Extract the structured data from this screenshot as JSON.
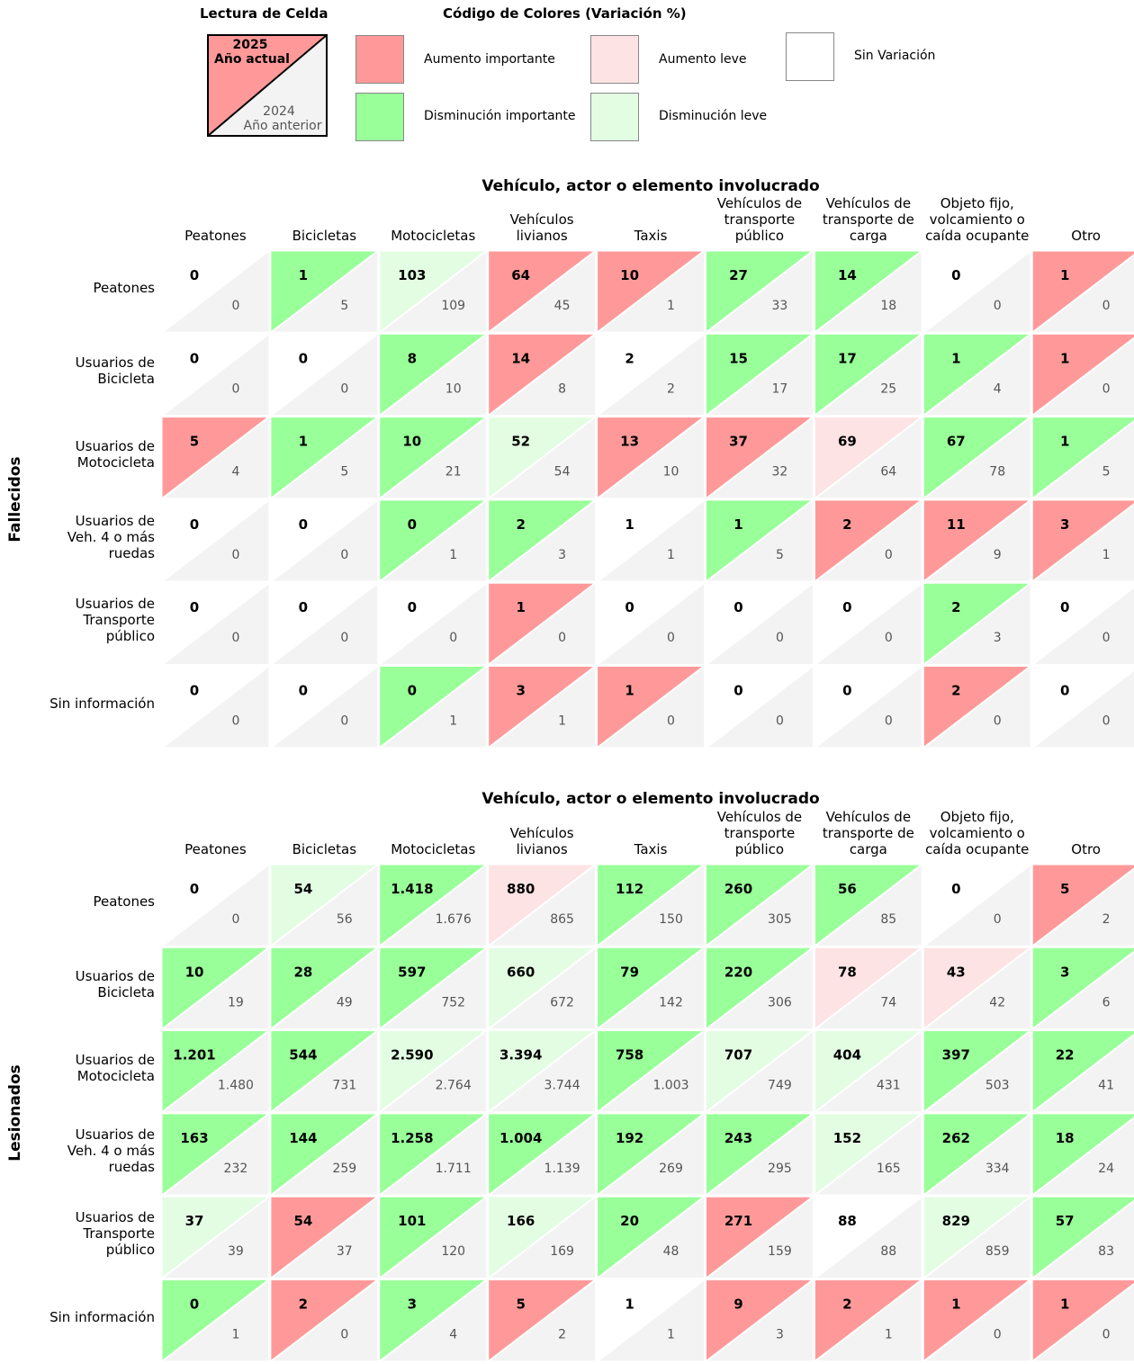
{
  "legend": {
    "cell_title": "Lectura de Celda",
    "cell_current_year": "2025",
    "cell_current_label": "Año actual",
    "cell_previous_year": "2024",
    "cell_previous_label": "Año anterior",
    "colors_title": "Código de Colores (Variación %)",
    "items": [
      {
        "key": "strong_increase",
        "label": "Aumento importante",
        "color": "#ff9999"
      },
      {
        "key": "slight_increase",
        "label": "Aumento leve",
        "color": "#fde3e3"
      },
      {
        "key": "no_change",
        "label": "Sin Variación",
        "color": "#ffffff"
      },
      {
        "key": "strong_decrease",
        "label": "Disminución importante",
        "color": "#99ff99"
      },
      {
        "key": "slight_decrease",
        "label": "Disminución leve",
        "color": "#e3fde3"
      }
    ],
    "previous_bg": "#f3f3f3"
  },
  "chart_data": [
    {
      "type": "heatmap",
      "id": "fallecidos",
      "title": "Vehículo, actor o elemento involucrado",
      "ylabel": "Fallecidos",
      "columns": [
        [
          "Peatones"
        ],
        [
          "Bicicletas"
        ],
        [
          "Motocicletas"
        ],
        [
          "Vehículos",
          "livianos"
        ],
        [
          "Taxis"
        ],
        [
          "Vehículos de",
          "transporte",
          "público"
        ],
        [
          "Vehículos de",
          "transporte de",
          "carga"
        ],
        [
          "Objeto fijo,",
          "volcamiento o",
          "caída ocupante"
        ],
        [
          "Otro"
        ]
      ],
      "rows": [
        [
          "Peatones"
        ],
        [
          "Usuarios de",
          "Bicicleta"
        ],
        [
          "Usuarios de",
          "Motocicleta"
        ],
        [
          "Usuarios de",
          "Veh. 4 o más",
          "ruedas"
        ],
        [
          "Usuarios de",
          "Transporte",
          "público"
        ],
        [
          "Sin información"
        ]
      ],
      "current": [
        [
          "0",
          "1",
          "103",
          "64",
          "10",
          "27",
          "14",
          "0",
          "1"
        ],
        [
          "0",
          "0",
          "8",
          "14",
          "2",
          "15",
          "17",
          "1",
          "1"
        ],
        [
          "5",
          "1",
          "10",
          "52",
          "13",
          "37",
          "69",
          "67",
          "1"
        ],
        [
          "0",
          "0",
          "0",
          "2",
          "1",
          "1",
          "2",
          "11",
          "3"
        ],
        [
          "0",
          "0",
          "0",
          "1",
          "0",
          "0",
          "0",
          "2",
          "0"
        ],
        [
          "0",
          "0",
          "0",
          "3",
          "1",
          "0",
          "0",
          "2",
          "0"
        ]
      ],
      "previous": [
        [
          "0",
          "5",
          "109",
          "45",
          "1",
          "33",
          "18",
          "0",
          "0"
        ],
        [
          "0",
          "0",
          "10",
          "8",
          "2",
          "17",
          "25",
          "4",
          "0"
        ],
        [
          "4",
          "5",
          "21",
          "54",
          "10",
          "32",
          "64",
          "78",
          "5"
        ],
        [
          "0",
          "0",
          "1",
          "3",
          "1",
          "5",
          "0",
          "9",
          "1"
        ],
        [
          "0",
          "0",
          "0",
          "0",
          "0",
          "0",
          "0",
          "3",
          "0"
        ],
        [
          "0",
          "0",
          "1",
          "1",
          "0",
          "0",
          "0",
          "0",
          "0"
        ]
      ],
      "category": [
        [
          "none",
          "sd",
          "ld",
          "si",
          "si",
          "sd",
          "sd",
          "none",
          "si"
        ],
        [
          "none",
          "none",
          "sd",
          "si",
          "none",
          "sd",
          "sd",
          "sd",
          "si"
        ],
        [
          "si",
          "sd",
          "sd",
          "ld",
          "si",
          "si",
          "li",
          "sd",
          "sd"
        ],
        [
          "none",
          "none",
          "sd",
          "sd",
          "none",
          "sd",
          "si",
          "si",
          "si"
        ],
        [
          "none",
          "none",
          "none",
          "si",
          "none",
          "none",
          "none",
          "sd",
          "none"
        ],
        [
          "none",
          "none",
          "sd",
          "si",
          "si",
          "none",
          "none",
          "si",
          "none"
        ]
      ]
    },
    {
      "type": "heatmap",
      "id": "lesionados",
      "title": "Vehículo, actor o elemento involucrado",
      "ylabel": "Lesionados",
      "columns": [
        [
          "Peatones"
        ],
        [
          "Bicicletas"
        ],
        [
          "Motocicletas"
        ],
        [
          "Vehículos",
          "livianos"
        ],
        [
          "Taxis"
        ],
        [
          "Vehículos de",
          "transporte",
          "público"
        ],
        [
          "Vehículos de",
          "transporte de",
          "carga"
        ],
        [
          "Objeto fijo,",
          "volcamiento o",
          "caída ocupante"
        ],
        [
          "Otro"
        ]
      ],
      "rows": [
        [
          "Peatones"
        ],
        [
          "Usuarios de",
          "Bicicleta"
        ],
        [
          "Usuarios de",
          "Motocicleta"
        ],
        [
          "Usuarios de",
          "Veh. 4 o más",
          "ruedas"
        ],
        [
          "Usuarios de",
          "Transporte",
          "público"
        ],
        [
          "Sin información"
        ]
      ],
      "current": [
        [
          "0",
          "54",
          "1.418",
          "880",
          "112",
          "260",
          "56",
          "0",
          "5"
        ],
        [
          "10",
          "28",
          "597",
          "660",
          "79",
          "220",
          "78",
          "43",
          "3"
        ],
        [
          "1.201",
          "544",
          "2.590",
          "3.394",
          "758",
          "707",
          "404",
          "397",
          "22"
        ],
        [
          "163",
          "144",
          "1.258",
          "1.004",
          "192",
          "243",
          "152",
          "262",
          "18"
        ],
        [
          "37",
          "54",
          "101",
          "166",
          "20",
          "271",
          "88",
          "829",
          "57"
        ],
        [
          "0",
          "2",
          "3",
          "5",
          "1",
          "9",
          "2",
          "1",
          "1"
        ]
      ],
      "previous": [
        [
          "0",
          "56",
          "1.676",
          "865",
          "150",
          "305",
          "85",
          "0",
          "2"
        ],
        [
          "19",
          "49",
          "752",
          "672",
          "142",
          "306",
          "74",
          "42",
          "6"
        ],
        [
          "1.480",
          "731",
          "2.764",
          "3.744",
          "1.003",
          "749",
          "431",
          "503",
          "41"
        ],
        [
          "232",
          "259",
          "1.711",
          "1.139",
          "269",
          "295",
          "165",
          "334",
          "24"
        ],
        [
          "39",
          "37",
          "120",
          "169",
          "48",
          "159",
          "88",
          "859",
          "83"
        ],
        [
          "1",
          "0",
          "4",
          "2",
          "1",
          "3",
          "1",
          "0",
          "0"
        ]
      ],
      "category": [
        [
          "none",
          "ld",
          "sd",
          "li",
          "sd",
          "sd",
          "sd",
          "none",
          "si"
        ],
        [
          "sd",
          "sd",
          "sd",
          "ld",
          "sd",
          "sd",
          "li",
          "li",
          "sd"
        ],
        [
          "sd",
          "sd",
          "ld",
          "ld",
          "sd",
          "ld",
          "ld",
          "sd",
          "sd"
        ],
        [
          "sd",
          "sd",
          "sd",
          "sd",
          "sd",
          "sd",
          "ld",
          "sd",
          "sd"
        ],
        [
          "ld",
          "si",
          "sd",
          "ld",
          "sd",
          "si",
          "none",
          "ld",
          "sd"
        ],
        [
          "sd",
          "si",
          "sd",
          "si",
          "none",
          "si",
          "si",
          "si",
          "si"
        ]
      ]
    }
  ]
}
